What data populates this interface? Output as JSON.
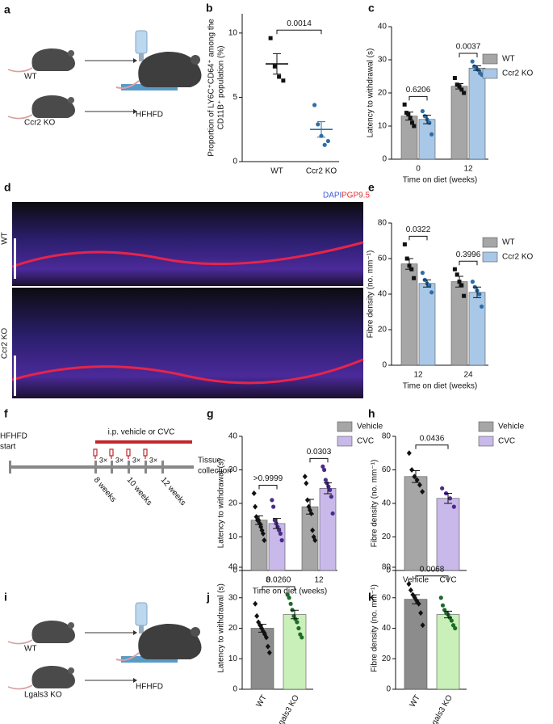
{
  "chart_data": [
    {
      "type": "dot",
      "panel": "b",
      "ylabel": [
        "Proportion of LY6C⁺CD64⁺ among the",
        "CD11B⁺ population (%)"
      ],
      "categories": [
        "WT",
        "Ccr2 KO"
      ],
      "ylim": [
        0,
        11.5
      ],
      "yticks": [
        0,
        5,
        10
      ],
      "annotations": [
        "0.0014"
      ],
      "series": [
        {
          "values": [
            7.6,
            2.5
          ],
          "errors": [
            0.8,
            0.6
          ],
          "colors": [
            "#111111",
            "#2d6ea8"
          ],
          "marker": [
            "square",
            "circle"
          ],
          "points": [
            [
              9.6,
              7.4,
              6.6,
              6.3
            ],
            [
              4.4,
              2.9,
              2.0,
              1.3,
              1.6
            ]
          ]
        }
      ]
    },
    {
      "type": "bar",
      "panel": "c",
      "ylabel": [
        "Latency to withdrawal (s)"
      ],
      "xlabel": "Time on diet (weeks)",
      "categories": [
        "0",
        "12"
      ],
      "ylim": [
        0,
        40
      ],
      "yticks": [
        0,
        10,
        20,
        30,
        40
      ],
      "annotations": [
        "0.6206",
        "0.0037"
      ],
      "legend": true,
      "series": [
        {
          "name": "WT",
          "color": "#a6a6a6",
          "point_color": "#111111",
          "marker": "square",
          "values": [
            13,
            22
          ],
          "errors": [
            1.2,
            0.8
          ],
          "points": [
            [
              16.5,
              14,
              13.5,
              12.5,
              11,
              10
            ],
            [
              24.5,
              22.5,
              22,
              21,
              20
            ]
          ]
        },
        {
          "name": "Ccr2 KO",
          "color": "#a9c8e8",
          "point_color": "#2d6ea8",
          "marker": "circle",
          "values": [
            12,
            27.5
          ],
          "errors": [
            1.3,
            0.7
          ],
          "points": [
            [
              14.5,
              13,
              12,
              11,
              7.5
            ],
            [
              29.5,
              28,
              27.5,
              27,
              26,
              25.5
            ]
          ]
        }
      ]
    },
    {
      "type": "bar",
      "panel": "e",
      "ylabel": [
        "Fibre density (no. mm⁻¹)"
      ],
      "xlabel": "Time on diet (weeks)",
      "categories": [
        "12",
        "24"
      ],
      "ylim": [
        0,
        80
      ],
      "yticks": [
        0,
        20,
        40,
        60,
        80
      ],
      "annotations": [
        "0.0322",
        "0.3996"
      ],
      "legend": true,
      "series": [
        {
          "name": "WT",
          "color": "#a6a6a6",
          "point_color": "#111111",
          "marker": "square",
          "values": [
            57,
            47
          ],
          "errors": [
            3,
            3
          ],
          "points": [
            [
              68,
              60,
              56,
              54,
              49
            ],
            [
              54,
              51,
              47,
              45,
              39
            ]
          ]
        },
        {
          "name": "Ccr2 KO",
          "color": "#a9c8e8",
          "point_color": "#2d6ea8",
          "marker": "circle",
          "values": [
            46,
            41
          ],
          "errors": [
            2,
            3
          ],
          "points": [
            [
              52,
              48,
              46,
              45,
              41
            ],
            [
              47,
              44,
              42,
              40,
              33
            ]
          ]
        }
      ]
    },
    {
      "type": "bar",
      "panel": "g",
      "ylabel": [
        "Latency to withdrawal (s)"
      ],
      "xlabel": "Time on diet (weeks)",
      "categories": [
        "8",
        "12"
      ],
      "ylim": [
        0,
        40
      ],
      "yticks": [
        0,
        10,
        20,
        30,
        40
      ],
      "annotations": [
        ">0.9999",
        "0.0303"
      ],
      "legend": true,
      "series": [
        {
          "name": "Vehicle",
          "color": "#a6a6a6",
          "point_color": "#111111",
          "marker": "diamond",
          "values": [
            15,
            19
          ],
          "errors": [
            1.3,
            2.2
          ],
          "points": [
            [
              23,
              19,
              16,
              15,
              15,
              14,
              13,
              12,
              11,
              9
            ],
            [
              28,
              26,
              21,
              19,
              18,
              17,
              12,
              10,
              9
            ]
          ]
        },
        {
          "name": "CVC",
          "color": "#c9b8ea",
          "point_color": "#4b2a8a",
          "marker": "circle",
          "values": [
            14,
            24.5
          ],
          "errors": [
            1.5,
            1.6
          ],
          "points": [
            [
              21,
              19,
              15,
              14,
              13,
              12,
              11,
              9
            ],
            [
              31,
              30,
              27,
              26,
              25,
              24,
              22,
              17
            ]
          ]
        }
      ]
    },
    {
      "type": "bar",
      "panel": "h",
      "ylabel": [
        "Fibre density (no. mm⁻¹)"
      ],
      "categories": [
        "Vehicle",
        "CVC"
      ],
      "ylim": [
        0,
        80
      ],
      "yticks": [
        0,
        20,
        40,
        60,
        80
      ],
      "annotations": [
        "0.0436"
      ],
      "legend_labels": [
        "Vehicle",
        "CVC"
      ],
      "series": [
        {
          "values": [
            56,
            43
          ],
          "errors": [
            3.5,
            3
          ],
          "colors": [
            "#a6a6a6",
            "#c9b8ea"
          ],
          "point_colors": [
            "#111111",
            "#4b2a8a"
          ],
          "marker": [
            "diamond",
            "circle"
          ],
          "points": [
            [
              70,
              60,
              56,
              54,
              51,
              47
            ],
            [
              49,
              46,
              43,
              38
            ]
          ]
        }
      ]
    },
    {
      "type": "bar",
      "panel": "j",
      "ylabel": [
        "Latency to withdrawal (s)"
      ],
      "rotate_labels": true,
      "categories": [
        "WT",
        "Lgals3 KO"
      ],
      "ylim": [
        0,
        40
      ],
      "yticks": [
        0,
        10,
        20,
        30,
        40
      ],
      "annotations": [
        "0.0260"
      ],
      "series": [
        {
          "values": [
            20,
            24.5
          ],
          "errors": [
            1.3,
            1.4
          ],
          "colors": [
            "#8c8c8c",
            "#c8f0b8"
          ],
          "point_colors": [
            "#111111",
            "#1e6b2a"
          ],
          "marker": [
            "diamond",
            "circle"
          ],
          "points": [
            [
              28,
              24,
              22,
              21,
              20,
              19,
              18,
              17,
              14,
              12
            ],
            [
              31,
              30,
              28,
              26,
              24,
              23,
              22,
              20,
              18,
              17
            ]
          ]
        }
      ]
    },
    {
      "type": "bar",
      "panel": "k",
      "ylabel": [
        "Fibre density (no. mm⁻¹)"
      ],
      "rotate_labels": true,
      "categories": [
        "WT",
        "Lgals3 KO"
      ],
      "ylim": [
        0,
        80
      ],
      "yticks": [
        0,
        20,
        40,
        60,
        80
      ],
      "annotations": [
        "0.0068"
      ],
      "series": [
        {
          "values": [
            59,
            49
          ],
          "errors": [
            3,
            2.2
          ],
          "colors": [
            "#8c8c8c",
            "#c8f0b8"
          ],
          "point_colors": [
            "#111111",
            "#1e6b2a"
          ],
          "marker": [
            "diamond",
            "circle"
          ],
          "points": [
            [
              69,
              65,
              62,
              60,
              58,
              56,
              50,
              42
            ],
            [
              60,
              55,
              52,
              50,
              49,
              47,
              45,
              42,
              40
            ]
          ]
        }
      ]
    }
  ],
  "panel_a": {
    "label": "a",
    "wt": "WT",
    "ko": "Ccr2 KO",
    "diet": "HFHFD"
  },
  "panel_d": {
    "label": "d",
    "stain1": "DAPI",
    "stain2": "PGP9.5",
    "top": "WT",
    "bottom": "Ccr2 KO"
  },
  "panel_f": {
    "label": "f",
    "start": [
      "HFHFD",
      "start"
    ],
    "treatment": "i.p. vehicle or CVC",
    "doses": [
      "3×",
      "3×",
      "3×",
      "3×"
    ],
    "weeks": [
      "8 weeks",
      "10 weeks",
      "12 weeks"
    ],
    "end": [
      "Tissue",
      "collection"
    ]
  },
  "panel_i": {
    "label": "i",
    "wt": "WT",
    "ko": "Lgals3 KO",
    "diet": "HFHFD"
  }
}
